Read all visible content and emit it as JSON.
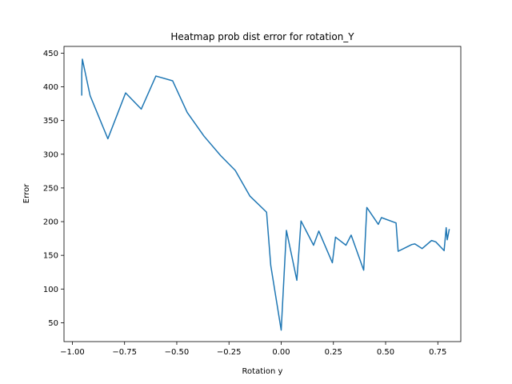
{
  "chart_data": {
    "type": "line",
    "title": "Heatmap prob dist error for rotation_Y",
    "xlabel": "Rotation y",
    "ylabel": "Error",
    "xlim": [
      -1.04,
      0.86
    ],
    "ylim": [
      22,
      460
    ],
    "xticks": [
      -1.0,
      -0.75,
      -0.5,
      -0.25,
      0.0,
      0.25,
      0.5,
      0.75
    ],
    "xtick_labels": [
      "−1.00",
      "−0.75",
      "−0.50",
      "−0.25",
      "0.00",
      "0.25",
      "0.50",
      "0.75"
    ],
    "yticks": [
      50,
      100,
      150,
      200,
      250,
      300,
      350,
      400,
      450
    ],
    "ytick_labels": [
      "50",
      "100",
      "150",
      "200",
      "250",
      "300",
      "350",
      "400",
      "450"
    ],
    "grid": false,
    "series": [
      {
        "color": "#1f77b4",
        "x": [
          -0.955,
          -0.955,
          -0.952,
          -0.915,
          -0.83,
          -0.745,
          -0.67,
          -0.6,
          -0.52,
          -0.45,
          -0.37,
          -0.29,
          -0.22,
          -0.15,
          -0.07,
          -0.05,
          0.0,
          0.025,
          0.075,
          0.095,
          0.155,
          0.18,
          0.245,
          0.26,
          0.31,
          0.335,
          0.395,
          0.41,
          0.465,
          0.48,
          0.55,
          0.56,
          0.625,
          0.64,
          0.675,
          0.72,
          0.74,
          0.78,
          0.79,
          0.795,
          0.805
        ],
        "y": [
          387,
          420,
          441,
          387,
          323,
          391,
          367,
          416,
          409,
          362,
          327,
          298,
          276,
          238,
          214,
          135,
          39,
          187,
          113,
          201,
          165,
          186,
          139,
          177,
          165,
          180,
          128,
          221,
          196,
          206,
          198,
          156,
          166,
          167,
          160,
          172,
          170,
          157,
          191,
          173,
          189
        ]
      }
    ]
  }
}
